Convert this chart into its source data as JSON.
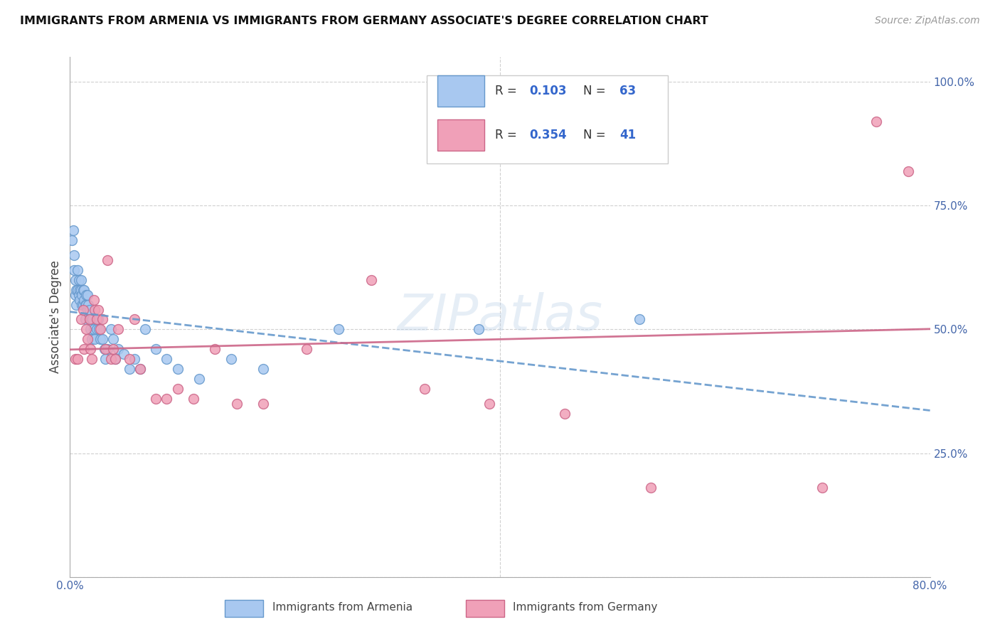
{
  "title": "IMMIGRANTS FROM ARMENIA VS IMMIGRANTS FROM GERMANY ASSOCIATE'S DEGREE CORRELATION CHART",
  "source": "Source: ZipAtlas.com",
  "ylabel": "Associate's Degree",
  "xlim": [
    0.0,
    0.8
  ],
  "ylim": [
    0.0,
    1.05
  ],
  "yticks_right": [
    0.0,
    0.25,
    0.5,
    0.75,
    1.0
  ],
  "yticklabels_right": [
    "",
    "25.0%",
    "50.0%",
    "75.0%",
    "100.0%"
  ],
  "background_color": "#ffffff",
  "grid_color": "#d0d0d0",
  "armenia_color": "#a8c8f0",
  "armenia_edge_color": "#6699cc",
  "armenia_R": 0.103,
  "armenia_N": 63,
  "germany_color": "#f0a0b8",
  "germany_edge_color": "#cc6688",
  "germany_R": 0.354,
  "germany_N": 41,
  "watermark": "ZIPatlas",
  "armenia_x": [
    0.002,
    0.003,
    0.004,
    0.004,
    0.005,
    0.005,
    0.006,
    0.006,
    0.007,
    0.007,
    0.008,
    0.008,
    0.009,
    0.009,
    0.01,
    0.01,
    0.011,
    0.011,
    0.012,
    0.012,
    0.013,
    0.013,
    0.014,
    0.014,
    0.015,
    0.015,
    0.016,
    0.016,
    0.017,
    0.018,
    0.018,
    0.019,
    0.02,
    0.02,
    0.021,
    0.022,
    0.023,
    0.025,
    0.026,
    0.027,
    0.028,
    0.03,
    0.032,
    0.033,
    0.035,
    0.038,
    0.04,
    0.042,
    0.045,
    0.05,
    0.055,
    0.06,
    0.065,
    0.07,
    0.08,
    0.09,
    0.1,
    0.12,
    0.15,
    0.18,
    0.25,
    0.38,
    0.53
  ],
  "armenia_y": [
    0.68,
    0.7,
    0.62,
    0.65,
    0.6,
    0.57,
    0.58,
    0.55,
    0.62,
    0.58,
    0.6,
    0.57,
    0.58,
    0.56,
    0.58,
    0.6,
    0.57,
    0.55,
    0.58,
    0.55,
    0.58,
    0.56,
    0.55,
    0.52,
    0.55,
    0.57,
    0.54,
    0.57,
    0.55,
    0.54,
    0.52,
    0.5,
    0.52,
    0.48,
    0.52,
    0.5,
    0.48,
    0.5,
    0.52,
    0.5,
    0.48,
    0.48,
    0.46,
    0.44,
    0.46,
    0.5,
    0.48,
    0.44,
    0.46,
    0.45,
    0.42,
    0.44,
    0.42,
    0.5,
    0.46,
    0.44,
    0.42,
    0.4,
    0.44,
    0.42,
    0.5,
    0.5,
    0.52
  ],
  "germany_x": [
    0.005,
    0.007,
    0.01,
    0.012,
    0.013,
    0.015,
    0.016,
    0.018,
    0.019,
    0.02,
    0.022,
    0.023,
    0.025,
    0.026,
    0.028,
    0.03,
    0.033,
    0.035,
    0.038,
    0.04,
    0.042,
    0.045,
    0.055,
    0.06,
    0.065,
    0.08,
    0.09,
    0.1,
    0.115,
    0.135,
    0.155,
    0.18,
    0.22,
    0.28,
    0.33,
    0.39,
    0.46,
    0.54,
    0.7,
    0.75,
    0.78
  ],
  "germany_y": [
    0.44,
    0.44,
    0.52,
    0.54,
    0.46,
    0.5,
    0.48,
    0.52,
    0.46,
    0.44,
    0.56,
    0.54,
    0.52,
    0.54,
    0.5,
    0.52,
    0.46,
    0.64,
    0.44,
    0.46,
    0.44,
    0.5,
    0.44,
    0.52,
    0.42,
    0.36,
    0.36,
    0.38,
    0.36,
    0.46,
    0.35,
    0.35,
    0.46,
    0.6,
    0.38,
    0.35,
    0.33,
    0.18,
    0.18,
    0.92,
    0.82
  ]
}
